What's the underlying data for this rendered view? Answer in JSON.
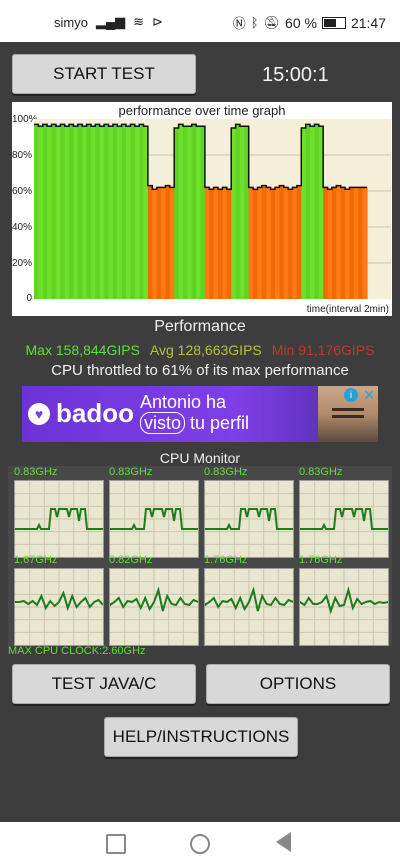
{
  "status_bar": {
    "carrier": "simyo",
    "battery_percent": "60 %",
    "time": "21:47"
  },
  "header": {
    "start_test_label": "START TEST",
    "timer": "15:00:1"
  },
  "graph": {
    "title": "performance over time graph",
    "y_ticks": [
      "100%",
      "80%",
      "60%",
      "40%",
      "20%",
      "0"
    ],
    "x_label": "time(interval 2min)"
  },
  "chart_data": {
    "type": "area",
    "title": "performance over time graph",
    "xlabel": "time(interval 2min)",
    "ylabel": "",
    "ylim": [
      0,
      100
    ],
    "series": [
      {
        "values": [
          97,
          96,
          97,
          96,
          97,
          96,
          97,
          96,
          97,
          96,
          97,
          96,
          97,
          96,
          97,
          96,
          97,
          96,
          97,
          96,
          97,
          96,
          97,
          96,
          97,
          96,
          63,
          61,
          62,
          62,
          63,
          62,
          95,
          97,
          96,
          96,
          97,
          96,
          96,
          62,
          61,
          62,
          61,
          62,
          61,
          95,
          97,
          96,
          96,
          62,
          61,
          62,
          63,
          62,
          61,
          62,
          63,
          62,
          61,
          62,
          63,
          95,
          97,
          96,
          97,
          96,
          62,
          61,
          62,
          63,
          62,
          61,
          62,
          62,
          62,
          62
        ]
      }
    ]
  },
  "performance": {
    "title": "Performance",
    "max": "Max 158,844GIPS",
    "avg": "Avg 128,663GIPS",
    "min": "Min 91,176GIPS",
    "throttle_text": "CPU throttled to 61% of its max performance"
  },
  "ad": {
    "brand": "badoo",
    "line1": "Antonio ha",
    "line2_highlight": "visto",
    "line2_rest": "tu perfil"
  },
  "cpu_monitor": {
    "title": "CPU Monitor",
    "cores": [
      {
        "freq": "0.83GHz",
        "pattern": "plateau"
      },
      {
        "freq": "0.83GHz",
        "pattern": "plateau"
      },
      {
        "freq": "0.83GHz",
        "pattern": "plateau"
      },
      {
        "freq": "0.83GHz",
        "pattern": "plateau"
      },
      {
        "freq": "1.67GHz",
        "pattern": "noisy"
      },
      {
        "freq": "0.82GHz",
        "pattern": "noisy"
      },
      {
        "freq": "1.76GHz",
        "pattern": "noisy"
      },
      {
        "freq": "1.76GHz",
        "pattern": "noisy"
      }
    ],
    "max_clock": "MAX CPU CLOCK:2.60GHz"
  },
  "buttons": {
    "test_java_c": "TEST JAVA/C",
    "options": "OPTIONS",
    "help": "HELP/INSTRUCTIONS"
  },
  "colors": {
    "max": "#5fe036",
    "avg": "#b8c23a",
    "min": "#c0392b"
  }
}
